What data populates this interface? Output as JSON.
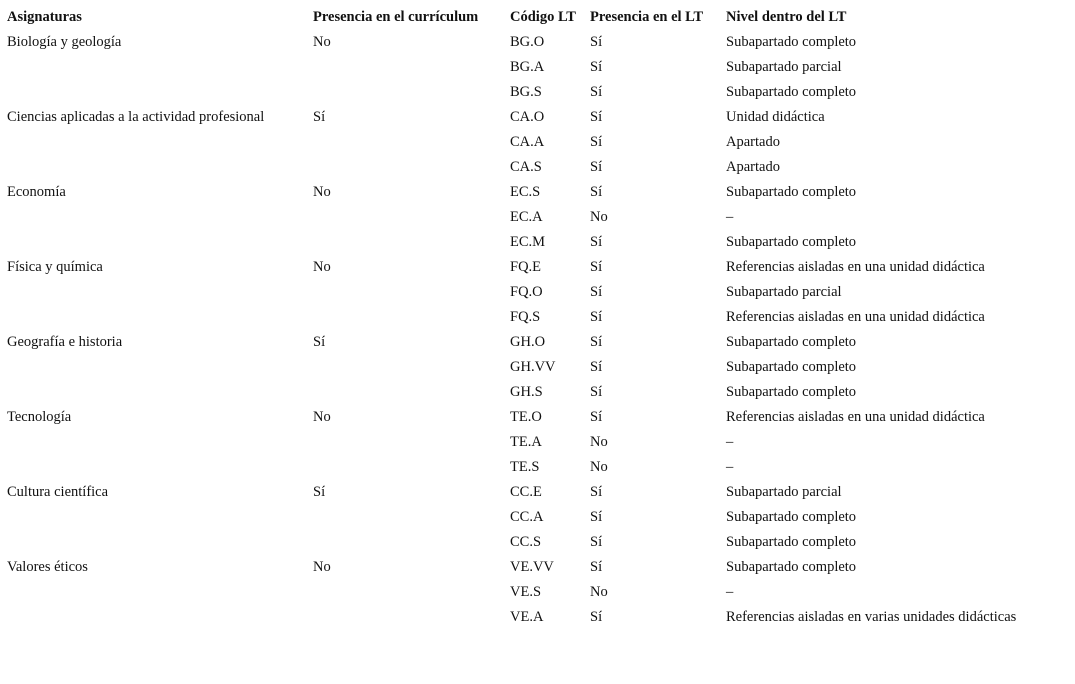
{
  "table": {
    "header": [
      "Asignaturas",
      "Presencia en el currículum",
      "Código LT",
      "Presencia en el LT",
      "Nivel dentro del LT"
    ],
    "groups": [
      {
        "subject": "Biología y geología",
        "presence": "No",
        "rows": [
          [
            "BG.O",
            "Sí",
            "Subapartado completo"
          ],
          [
            "BG.A",
            "Sí",
            "Subapartado parcial"
          ],
          [
            "BG.S",
            "Sí",
            "Subapartado completo"
          ]
        ]
      },
      {
        "subject": "Ciencias aplicadas a la actividad profesional",
        "presence": "Sí",
        "rows": [
          [
            "CA.O",
            "Sí",
            "Unidad didáctica"
          ],
          [
            "CA.A",
            "Sí",
            "Apartado"
          ],
          [
            "CA.S",
            "Sí",
            "Apartado"
          ]
        ]
      },
      {
        "subject": "Economía",
        "presence": "No",
        "rows": [
          [
            "EC.S",
            "Sí",
            "Subapartado completo"
          ],
          [
            "EC.A",
            "No",
            "–"
          ],
          [
            "EC.M",
            "Sí",
            "Subapartado completo"
          ]
        ]
      },
      {
        "subject": "Física y química",
        "presence": "No",
        "rows": [
          [
            "FQ.E",
            "Sí",
            "Referencias aisladas en una unidad didáctica"
          ],
          [
            "FQ.O",
            "Sí",
            "Subapartado parcial"
          ],
          [
            "FQ.S",
            "Sí",
            "Referencias aisladas en una unidad didáctica"
          ]
        ]
      },
      {
        "subject": "Geografía e historia",
        "presence": "Sí",
        "rows": [
          [
            "GH.O",
            "Sí",
            "Subapartado completo"
          ],
          [
            "GH.VV",
            "Sí",
            "Subapartado completo"
          ],
          [
            "GH.S",
            "Sí",
            "Subapartado completo"
          ]
        ]
      },
      {
        "subject": "Tecnología",
        "presence": "No",
        "rows": [
          [
            "TE.O",
            "Sí",
            "Referencias aisladas en una unidad didáctica"
          ],
          [
            "TE.A",
            "No",
            "–"
          ],
          [
            "TE.S",
            "No",
            "–"
          ]
        ]
      },
      {
        "subject": "Cultura científica",
        "presence": "Sí",
        "rows": [
          [
            "CC.E",
            "Sí",
            "Subapartado parcial"
          ],
          [
            "CC.A",
            "Sí",
            "Subapartado completo"
          ],
          [
            "CC.S",
            "Sí",
            "Subapartado completo"
          ]
        ]
      },
      {
        "subject": "Valores éticos",
        "presence": "No",
        "rows": [
          [
            "VE.VV",
            "Sí",
            "Subapartado completo"
          ],
          [
            "VE.S",
            "No",
            "–"
          ],
          [
            "VE.A",
            "Sí",
            "Referencias aisladas en varias unidades didácticas"
          ]
        ]
      }
    ]
  }
}
